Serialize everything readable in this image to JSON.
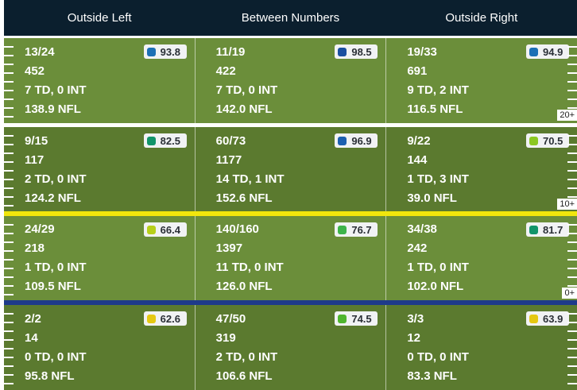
{
  "headers": [
    "Outside Left",
    "Between Numbers",
    "Outside Right"
  ],
  "yard_markers": [
    "20+",
    "10+",
    "0+"
  ],
  "colors": {
    "header_bg": "#0b1f2e",
    "turf_light": "#6b8e3a",
    "turf_dark": "#5b7a2f",
    "first_down_line": "#f1e60c",
    "line_of_scrimmage": "#1e3a8a"
  },
  "zones": [
    {
      "cells": [
        {
          "comp_att": "13/24",
          "yards": "452",
          "td_int": "7 TD, 0 INT",
          "rating": "138.9 NFL",
          "grade": "93.8",
          "grade_color": "#1c6fb5"
        },
        {
          "comp_att": "11/19",
          "yards": "422",
          "td_int": "7 TD, 0 INT",
          "rating": "142.0 NFL",
          "grade": "98.5",
          "grade_color": "#1a4fa0"
        },
        {
          "comp_att": "19/33",
          "yards": "691",
          "td_int": "9 TD, 2 INT",
          "rating": "116.5 NFL",
          "grade": "94.9",
          "grade_color": "#1c6fb5"
        }
      ]
    },
    {
      "cells": [
        {
          "comp_att": "9/15",
          "yards": "117",
          "td_int": "2 TD, 0 INT",
          "rating": "124.2 NFL",
          "grade": "82.5",
          "grade_color": "#12946a"
        },
        {
          "comp_att": "60/73",
          "yards": "1177",
          "td_int": "14 TD, 1 INT",
          "rating": "152.6 NFL",
          "grade": "96.9",
          "grade_color": "#1c5fb0"
        },
        {
          "comp_att": "9/22",
          "yards": "144",
          "td_int": "1 TD, 3 INT",
          "rating": "39.0 NFL",
          "grade": "70.5",
          "grade_color": "#8cc821"
        }
      ]
    },
    {
      "cells": [
        {
          "comp_att": "24/29",
          "yards": "218",
          "td_int": "1 TD, 0 INT",
          "rating": "109.5 NFL",
          "grade": "66.4",
          "grade_color": "#b7cf1a"
        },
        {
          "comp_att": "140/160",
          "yards": "1397",
          "td_int": "11 TD, 0 INT",
          "rating": "126.0 NFL",
          "grade": "76.7",
          "grade_color": "#3db34a"
        },
        {
          "comp_att": "34/38",
          "yards": "242",
          "td_int": "1 TD, 0 INT",
          "rating": "102.0 NFL",
          "grade": "81.7",
          "grade_color": "#12946a"
        }
      ]
    },
    {
      "cells": [
        {
          "comp_att": "2/2",
          "yards": "14",
          "td_int": "0 TD, 0 INT",
          "rating": "95.8 NFL",
          "grade": "62.6",
          "grade_color": "#e5c812"
        },
        {
          "comp_att": "47/50",
          "yards": "319",
          "td_int": "2 TD, 0 INT",
          "rating": "106.6 NFL",
          "grade": "74.5",
          "grade_color": "#4fb52e"
        },
        {
          "comp_att": "3/3",
          "yards": "12",
          "td_int": "0 TD, 0 INT",
          "rating": "83.3 NFL",
          "grade": "63.9",
          "grade_color": "#e5c812"
        }
      ]
    }
  ]
}
